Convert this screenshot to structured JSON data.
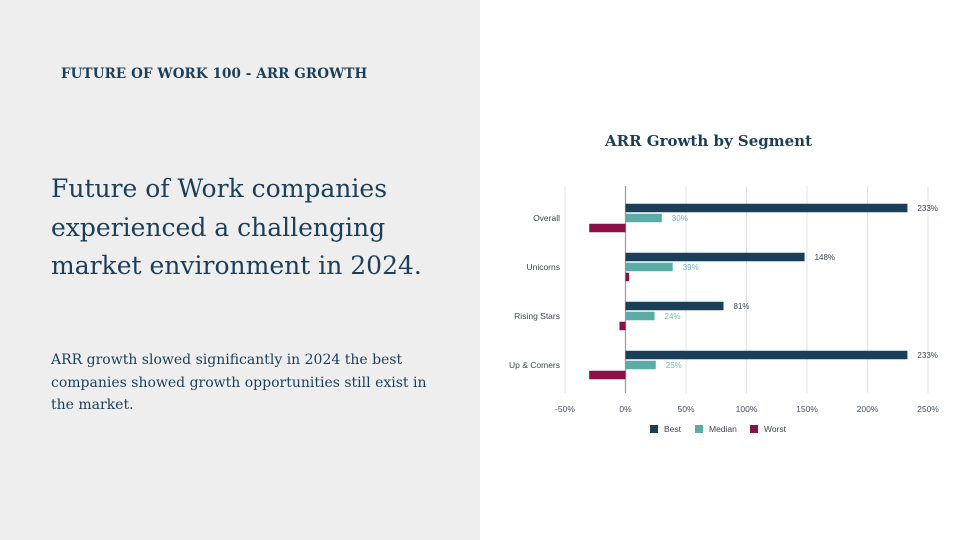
{
  "slide": {
    "eyebrow": "FUTURE OF WORK 100 - ARR GROWTH",
    "headline": "Future of Work companies experienced a challenging market environment in 2024.",
    "body": "ARR growth slowed significantly in 2024 the best companies showed growth opportunities still exist in the market."
  },
  "chart_data": {
    "type": "bar",
    "orientation": "horizontal",
    "title": "ARR Growth by Segment",
    "categories": [
      "Overall",
      "Unicorns",
      "Rising Stars",
      "Up & Comers"
    ],
    "series": [
      {
        "name": "Best",
        "color": "#1b3f59",
        "values": [
          233,
          148,
          81,
          233
        ],
        "labels": [
          "233%",
          "148%",
          "81%",
          "233%"
        ]
      },
      {
        "name": "Median",
        "color": "#5aaca6",
        "values": [
          30,
          39,
          24,
          25
        ],
        "labels": [
          "30%",
          "39%",
          "24%",
          "25%"
        ]
      },
      {
        "name": "Worst",
        "color": "#8c0f45",
        "values": [
          -30,
          3,
          -5,
          -30
        ],
        "labels": [
          "",
          "",
          "",
          ""
        ]
      }
    ],
    "xlim": [
      -50,
      250
    ],
    "xticks": [
      -50,
      0,
      50,
      100,
      150,
      200,
      250
    ],
    "xtick_labels": [
      "-50%",
      "0%",
      "50%",
      "100%",
      "150%",
      "200%",
      "250%"
    ],
    "grid": true,
    "legend": "bottom"
  }
}
